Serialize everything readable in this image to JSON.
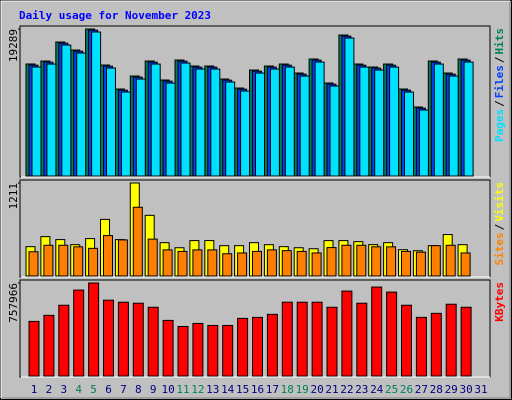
{
  "title": "Daily usage for November 2023",
  "chart_data": [
    {
      "type": "bar",
      "legend_separator": "/",
      "ylim": [
        0,
        19289
      ],
      "yticks": [
        19289
      ],
      "series": [
        {
          "name": "Hits",
          "color": "#00805c",
          "values": [
            14700,
            15088,
            17581,
            16531,
            19289,
            14563,
            11414,
            13120,
            15088,
            12595,
            15219,
            14432,
            14432,
            12726,
            11546,
            13907,
            14432,
            14694,
            13514,
            15350,
            12202,
            18499,
            14694,
            14301,
            14694,
            11414,
            9053,
            15088,
            13514,
            15350,
            null
          ]
        },
        {
          "name": "Files",
          "color": "#0040ff",
          "values": [
            14550,
            14938,
            17431,
            16381,
            19139,
            14413,
            11264,
            12970,
            14938,
            12445,
            15069,
            14282,
            14282,
            12576,
            11396,
            13757,
            14282,
            14544,
            13364,
            15200,
            12052,
            18349,
            14544,
            14151,
            14544,
            11264,
            8903,
            14938,
            13364,
            15200,
            null
          ]
        },
        {
          "name": "Pages",
          "color": "#00e0ff",
          "values": [
            14300,
            14688,
            17181,
            16131,
            18889,
            14163,
            11014,
            12720,
            14688,
            12195,
            14819,
            14032,
            14032,
            12326,
            11146,
            13507,
            14032,
            14294,
            13114,
            14950,
            11802,
            18099,
            14294,
            13901,
            14294,
            11014,
            8653,
            14688,
            13114,
            14950,
            null
          ]
        }
      ]
    },
    {
      "type": "bar",
      "legend_separator": "/",
      "ylim": [
        0,
        1211
      ],
      "yticks": [
        1211
      ],
      "series": [
        {
          "name": "Visits",
          "color": "#ffff00",
          "values": [
            382,
            513,
            474,
            408,
            487,
            737,
            474,
            1211,
            790,
            434,
            368,
            461,
            461,
            395,
            395,
            434,
            408,
            382,
            368,
            355,
            461,
            461,
            447,
            408,
            434,
            342,
            329,
            395,
            540,
            408,
            null
          ]
        },
        {
          "name": "Sites",
          "color": "#ff8000",
          "values": [
            316,
            400,
            400,
            380,
            360,
            526,
            470,
            895,
            480,
            340,
            320,
            340,
            340,
            290,
            300,
            320,
            340,
            330,
            320,
            300,
            370,
            400,
            400,
            380,
            380,
            320,
            310,
            395,
            400,
            300,
            null
          ]
        }
      ]
    },
    {
      "type": "bar",
      "ylim": [
        0,
        757966
      ],
      "yticks": [
        757966
      ],
      "categories": [
        "1",
        "2",
        "3",
        "4",
        "5",
        "6",
        "7",
        "8",
        "9",
        "10",
        "11",
        "12",
        "13",
        "14",
        "15",
        "16",
        "17",
        "18",
        "19",
        "20",
        "21",
        "22",
        "23",
        "24",
        "25",
        "26",
        "27",
        "28",
        "29",
        "30",
        "31"
      ],
      "category_color": "#000080",
      "highlight_color": "#00805c",
      "highlighted_category_indices": [
        3,
        4,
        10,
        11,
        17,
        18,
        24,
        25
      ],
      "series": [
        {
          "name": "KBytes",
          "color": "#ff0000",
          "values": [
            444906,
            494340,
            576730,
            700315,
            757966,
            617925,
            601447,
            593208,
            560252,
            453145,
            403711,
            428428,
            411950,
            411950,
            469623,
            477862,
            502579,
            601447,
            601447,
            601447,
            560252,
            692076,
            593208,
            725032,
            683837,
            576730,
            477862,
            510818,
            584969,
            560252,
            null
          ]
        }
      ]
    }
  ]
}
